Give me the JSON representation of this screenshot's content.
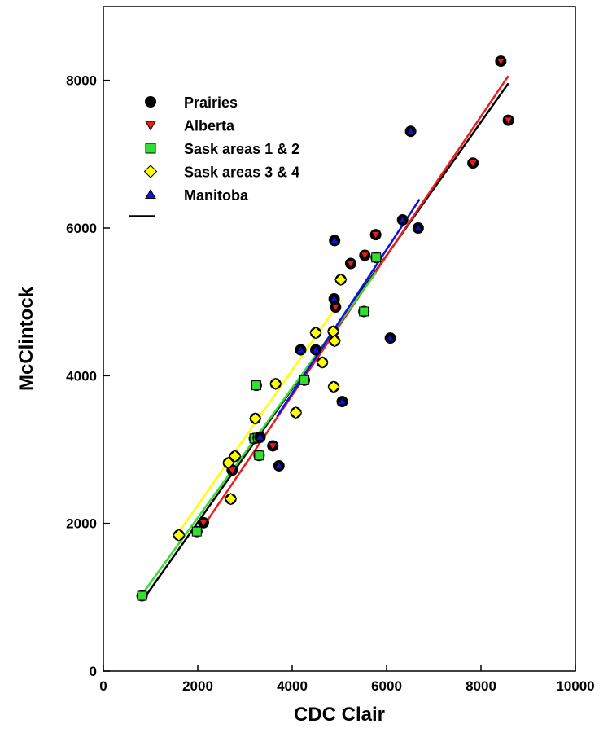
{
  "chart_data": {
    "type": "scatter",
    "xlabel": "CDC Clair",
    "ylabel": "McClintock",
    "xlim": [
      0,
      10000
    ],
    "ylim": [
      0,
      9000
    ],
    "x_ticks": [
      0,
      2000,
      4000,
      6000,
      8000,
      10000
    ],
    "y_ticks": [
      0,
      2000,
      4000,
      6000,
      8000
    ],
    "legend_position": "top-left",
    "series": [
      {
        "name": "Prairies",
        "marker": "circle",
        "color": "#000000",
        "points": []
      },
      {
        "name": "Alberta",
        "marker": "triangle-down",
        "color": "#ee1c1c",
        "points": [
          [
            2120,
            2010
          ],
          [
            2730,
            2720
          ],
          [
            3590,
            3050
          ],
          [
            4920,
            4930
          ],
          [
            5240,
            5520
          ],
          [
            5540,
            5630
          ],
          [
            5770,
            5910
          ],
          [
            7830,
            6880
          ],
          [
            8420,
            8260
          ],
          [
            8580,
            7460
          ]
        ]
      },
      {
        "name": "Sask areas 1 & 2",
        "marker": "square",
        "color": "#33dd33",
        "points": [
          [
            820,
            1020
          ],
          [
            1980,
            1890
          ],
          [
            3200,
            3150
          ],
          [
            3280,
            3160
          ],
          [
            3240,
            3870
          ],
          [
            3300,
            2920
          ],
          [
            4260,
            3940
          ],
          [
            5520,
            4870
          ],
          [
            5780,
            5600
          ]
        ]
      },
      {
        "name": "Sask areas 3 & 4",
        "marker": "diamond",
        "color": "#ffff00",
        "points": [
          [
            1600,
            1840
          ],
          [
            2650,
            2820
          ],
          [
            2790,
            2910
          ],
          [
            2700,
            2330
          ],
          [
            3220,
            3420
          ],
          [
            3650,
            3890
          ],
          [
            4080,
            3500
          ],
          [
            4500,
            4580
          ],
          [
            4640,
            4180
          ],
          [
            4870,
            4600
          ],
          [
            4900,
            4470
          ],
          [
            4880,
            3850
          ],
          [
            5030,
            5300
          ]
        ]
      },
      {
        "name": "Manitoba",
        "marker": "triangle-up",
        "color": "#1111dd",
        "points": [
          [
            3320,
            3170
          ],
          [
            3720,
            2780
          ],
          [
            4180,
            4350
          ],
          [
            4500,
            4350
          ],
          [
            4890,
            5040
          ],
          [
            4900,
            5830
          ],
          [
            5060,
            3650
          ],
          [
            6080,
            4510
          ],
          [
            6340,
            6110
          ],
          [
            6510,
            7310
          ],
          [
            6670,
            6000
          ]
        ]
      }
    ],
    "regression_lines": [
      {
        "name": "Prairies",
        "color": "#000000",
        "x": [
          900,
          8580
        ],
        "y": [
          1020,
          7960
        ]
      },
      {
        "name": "Alberta",
        "color": "#ee1c1c",
        "x": [
          2120,
          8580
        ],
        "y": [
          1960,
          8060
        ]
      },
      {
        "name": "Sask areas 1 & 2",
        "color": "#33dd33",
        "x": [
          820,
          5780
        ],
        "y": [
          1040,
          5400
        ]
      },
      {
        "name": "Sask areas 3 & 4",
        "color": "#ffff00",
        "x": [
          1600,
          5030
        ],
        "y": [
          1880,
          5020
        ]
      },
      {
        "name": "Manitoba",
        "color": "#1111dd",
        "x": [
          3680,
          6700
        ],
        "y": [
          3450,
          6390
        ]
      }
    ]
  }
}
